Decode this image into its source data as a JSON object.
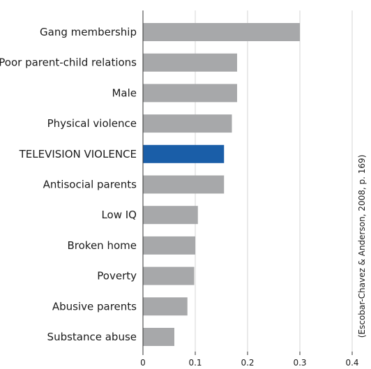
{
  "chart_data": {
    "type": "bar",
    "orientation": "horizontal",
    "categories": [
      "Gang membership",
      "Poor parent-child relations",
      "Male",
      "Physical violence",
      "TELEVISION VIOLENCE",
      "Antisocial parents",
      "Low IQ",
      "Broken home",
      "Poverty",
      "Abusive parents",
      "Substance abuse"
    ],
    "values": [
      0.3,
      0.18,
      0.18,
      0.17,
      0.155,
      0.155,
      0.105,
      0.1,
      0.098,
      0.085,
      0.06
    ],
    "highlight_index": 4,
    "xlim": [
      0,
      0.4
    ],
    "xticks": [
      "0",
      "0.1",
      "0.2",
      "0.3",
      "0.4"
    ],
    "xtick_values": [
      0,
      0.1,
      0.2,
      0.3,
      0.4
    ],
    "grid": "vertical",
    "source_note": "(Escobar-Chavez & Anderson, 2008, p. 169)",
    "colors": {
      "bar": "#a7a8aa",
      "highlight": "#1a5ea8",
      "grid": "#d6d6d6",
      "axis": "#333333",
      "text": "#1a1a1a"
    }
  }
}
